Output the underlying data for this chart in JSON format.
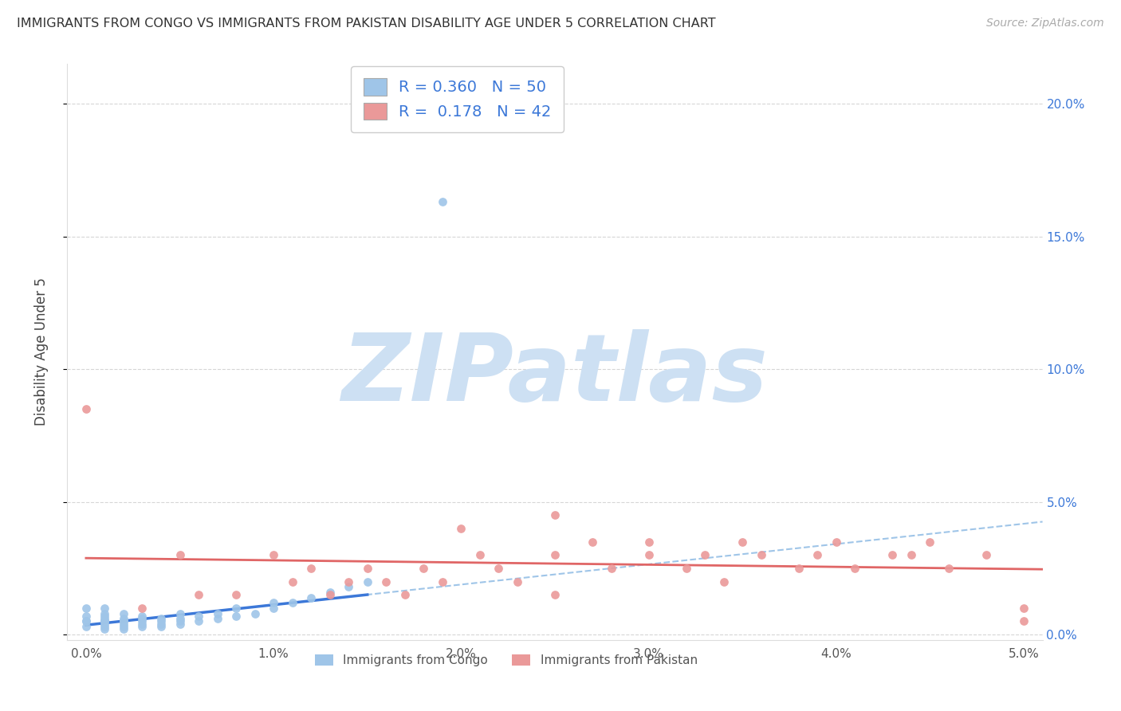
{
  "title": "IMMIGRANTS FROM CONGO VS IMMIGRANTS FROM PAKISTAN DISABILITY AGE UNDER 5 CORRELATION CHART",
  "source": "Source: ZipAtlas.com",
  "ylabel": "Disability Age Under 5",
  "xlim": [
    -0.001,
    0.051
  ],
  "ylim": [
    -0.002,
    0.215
  ],
  "xticks": [
    0.0,
    0.01,
    0.02,
    0.03,
    0.04,
    0.05
  ],
  "xtick_labels": [
    "0.0%",
    "1.0%",
    "2.0%",
    "3.0%",
    "4.0%",
    "5.0%"
  ],
  "yticks": [
    0.0,
    0.05,
    0.1,
    0.15,
    0.2
  ],
  "ytick_labels": [
    "0.0%",
    "5.0%",
    "10.0%",
    "15.0%",
    "20.0%"
  ],
  "congo_dot_color": "#9fc5e8",
  "pakistan_dot_color": "#ea9999",
  "congo_line_color": "#3c78d8",
  "pakistan_line_color": "#e06666",
  "dashed_line_color": "#9fc5e8",
  "legend_r_congo": "0.360",
  "legend_n_congo": "50",
  "legend_r_pakistan": "0.178",
  "legend_n_pakistan": "42",
  "congo_x": [
    0.0,
    0.0,
    0.0,
    0.0,
    0.0,
    0.001,
    0.001,
    0.001,
    0.001,
    0.001,
    0.001,
    0.001,
    0.001,
    0.001,
    0.001,
    0.002,
    0.002,
    0.002,
    0.002,
    0.002,
    0.002,
    0.002,
    0.003,
    0.003,
    0.003,
    0.003,
    0.003,
    0.004,
    0.004,
    0.004,
    0.004,
    0.005,
    0.005,
    0.005,
    0.005,
    0.006,
    0.006,
    0.007,
    0.007,
    0.008,
    0.008,
    0.009,
    0.01,
    0.01,
    0.011,
    0.012,
    0.013,
    0.014,
    0.015,
    0.019
  ],
  "congo_y": [
    0.003,
    0.005,
    0.005,
    0.007,
    0.01,
    0.002,
    0.003,
    0.004,
    0.005,
    0.005,
    0.005,
    0.006,
    0.007,
    0.008,
    0.01,
    0.002,
    0.003,
    0.004,
    0.005,
    0.005,
    0.006,
    0.008,
    0.003,
    0.004,
    0.005,
    0.006,
    0.007,
    0.003,
    0.004,
    0.005,
    0.006,
    0.004,
    0.005,
    0.006,
    0.008,
    0.005,
    0.007,
    0.006,
    0.008,
    0.007,
    0.01,
    0.008,
    0.01,
    0.012,
    0.012,
    0.014,
    0.016,
    0.018,
    0.02,
    0.163
  ],
  "pakistan_x": [
    0.0,
    0.003,
    0.005,
    0.006,
    0.008,
    0.01,
    0.011,
    0.012,
    0.013,
    0.014,
    0.015,
    0.016,
    0.017,
    0.018,
    0.019,
    0.02,
    0.021,
    0.022,
    0.023,
    0.025,
    0.025,
    0.027,
    0.028,
    0.03,
    0.03,
    0.032,
    0.033,
    0.034,
    0.035,
    0.036,
    0.038,
    0.039,
    0.04,
    0.041,
    0.043,
    0.044,
    0.045,
    0.046,
    0.048,
    0.05,
    0.05,
    0.025
  ],
  "pakistan_y": [
    0.085,
    0.01,
    0.03,
    0.015,
    0.015,
    0.03,
    0.02,
    0.025,
    0.015,
    0.02,
    0.025,
    0.02,
    0.015,
    0.025,
    0.02,
    0.04,
    0.03,
    0.025,
    0.02,
    0.045,
    0.03,
    0.035,
    0.025,
    0.03,
    0.035,
    0.025,
    0.03,
    0.02,
    0.035,
    0.03,
    0.025,
    0.03,
    0.035,
    0.025,
    0.03,
    0.03,
    0.035,
    0.025,
    0.03,
    0.01,
    0.005,
    0.015
  ],
  "congo_trend_slope": 2.8,
  "congo_trend_intercept": 0.0005,
  "congo_trend_xmax": 0.019,
  "pakistan_trend_slope": 0.18,
  "pakistan_trend_intercept": 0.01
}
